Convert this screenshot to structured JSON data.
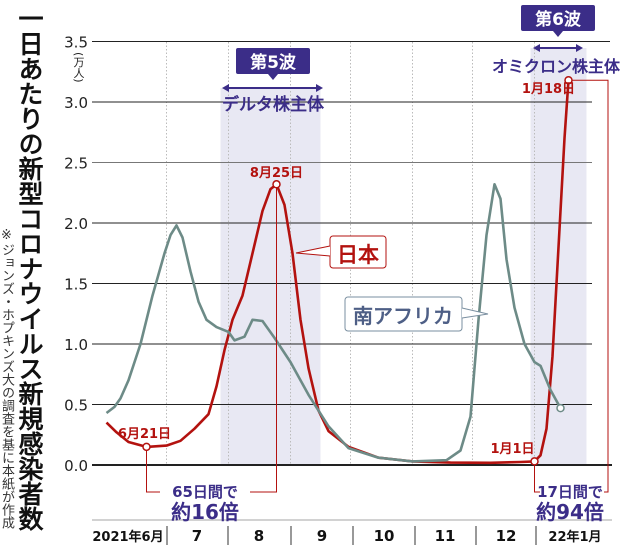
{
  "chart_data": {
    "type": "line",
    "title": "一日あたりの新型コロナウイルス新規感染者数",
    "note": "※ジョンズ・ホプキンズ大の調査を基に本紙が作成",
    "ylabel": "(万人)",
    "ylim": [
      0,
      3.5
    ],
    "yticks": [
      "0.0",
      "0.5",
      "1.0",
      "1.5",
      "2.0",
      "2.5",
      "3.0",
      "3.5"
    ],
    "yticks_values": [
      0,
      0.5,
      1.0,
      1.5,
      2.0,
      2.5,
      3.0,
      3.5
    ],
    "xticks": [
      "2021年6月",
      "7",
      "8",
      "9",
      "10",
      "11",
      "12",
      "22年1月"
    ],
    "grid": true,
    "shaded_periods": [
      {
        "badge": "第5波",
        "label": "デルタ株主体",
        "start": "2021-07-28",
        "end": "2021-09-16"
      },
      {
        "badge": "第6波",
        "label": "オミクロン株主体",
        "start": "2021-12-30",
        "end": "2022-01-27"
      }
    ],
    "series": [
      {
        "name": "日本",
        "color": "#b3120f",
        "points": [
          [
            "2021-06-01",
            0.35
          ],
          [
            "2021-06-06",
            0.27
          ],
          [
            "2021-06-12",
            0.19
          ],
          [
            "2021-06-21",
            0.15
          ],
          [
            "2021-07-01",
            0.16
          ],
          [
            "2021-07-08",
            0.2
          ],
          [
            "2021-07-15",
            0.3
          ],
          [
            "2021-07-22",
            0.42
          ],
          [
            "2021-07-26",
            0.65
          ],
          [
            "2021-07-30",
            0.95
          ],
          [
            "2021-08-03",
            1.2
          ],
          [
            "2021-08-08",
            1.4
          ],
          [
            "2021-08-13",
            1.75
          ],
          [
            "2021-08-18",
            2.1
          ],
          [
            "2021-08-22",
            2.28
          ],
          [
            "2021-08-25",
            2.32
          ],
          [
            "2021-08-29",
            2.15
          ],
          [
            "2021-09-02",
            1.75
          ],
          [
            "2021-09-06",
            1.2
          ],
          [
            "2021-09-10",
            0.8
          ],
          [
            "2021-09-15",
            0.45
          ],
          [
            "2021-09-20",
            0.28
          ],
          [
            "2021-09-30",
            0.15
          ],
          [
            "2021-10-15",
            0.06
          ],
          [
            "2021-11-01",
            0.03
          ],
          [
            "2021-11-20",
            0.02
          ],
          [
            "2021-12-10",
            0.018
          ],
          [
            "2021-12-25",
            0.025
          ],
          [
            "2022-01-01",
            0.03
          ],
          [
            "2022-01-04",
            0.08
          ],
          [
            "2022-01-07",
            0.3
          ],
          [
            "2022-01-10",
            0.9
          ],
          [
            "2022-01-13",
            1.8
          ],
          [
            "2022-01-16",
            2.7
          ],
          [
            "2022-01-18",
            3.18
          ]
        ]
      },
      {
        "name": "南アフリカ",
        "color": "#6d8b87",
        "points": [
          [
            "2021-06-01",
            0.43
          ],
          [
            "2021-06-05",
            0.48
          ],
          [
            "2021-06-08",
            0.55
          ],
          [
            "2021-06-12",
            0.7
          ],
          [
            "2021-06-18",
            1.0
          ],
          [
            "2021-06-24",
            1.4
          ],
          [
            "2021-06-30",
            1.75
          ],
          [
            "2021-07-03",
            1.9
          ],
          [
            "2021-07-06",
            1.98
          ],
          [
            "2021-07-09",
            1.88
          ],
          [
            "2021-07-13",
            1.6
          ],
          [
            "2021-07-17",
            1.35
          ],
          [
            "2021-07-21",
            1.2
          ],
          [
            "2021-07-26",
            1.14
          ],
          [
            "2021-08-01",
            1.1
          ],
          [
            "2021-08-04",
            1.03
          ],
          [
            "2021-08-09",
            1.06
          ],
          [
            "2021-08-13",
            1.2
          ],
          [
            "2021-08-18",
            1.19
          ],
          [
            "2021-08-24",
            1.05
          ],
          [
            "2021-09-01",
            0.85
          ],
          [
            "2021-09-10",
            0.58
          ],
          [
            "2021-09-20",
            0.32
          ],
          [
            "2021-09-30",
            0.14
          ],
          [
            "2021-10-15",
            0.06
          ],
          [
            "2021-11-01",
            0.03
          ],
          [
            "2021-11-18",
            0.04
          ],
          [
            "2021-11-25",
            0.12
          ],
          [
            "2021-11-30",
            0.4
          ],
          [
            "2021-12-04",
            1.2
          ],
          [
            "2021-12-08",
            1.9
          ],
          [
            "2021-12-12",
            2.32
          ],
          [
            "2021-12-15",
            2.2
          ],
          [
            "2021-12-18",
            1.7
          ],
          [
            "2021-12-22",
            1.3
          ],
          [
            "2021-12-27",
            1.0
          ],
          [
            "2022-01-01",
            0.85
          ],
          [
            "2022-01-04",
            0.82
          ],
          [
            "2022-01-09",
            0.62
          ],
          [
            "2022-01-14",
            0.47
          ]
        ]
      }
    ],
    "annotations": [
      {
        "date": "2021-06-21",
        "series": "日本",
        "label": "6月21日"
      },
      {
        "date": "2021-08-25",
        "series": "日本",
        "label": "8月25日"
      },
      {
        "date": "2022-01-01",
        "series": "日本",
        "label": "1月1日"
      },
      {
        "date": "2022-01-18",
        "series": "日本",
        "label": "1月18日"
      }
    ],
    "comparisons": [
      {
        "line1": "65日間で",
        "line2": "約16倍"
      },
      {
        "line1": "17日間で",
        "line2": "約94倍"
      }
    ]
  },
  "colors": {
    "accent": "#3b2d88",
    "japan": "#b3120f",
    "south_africa": "#6d8b87",
    "shade": "#e8e8f3"
  }
}
